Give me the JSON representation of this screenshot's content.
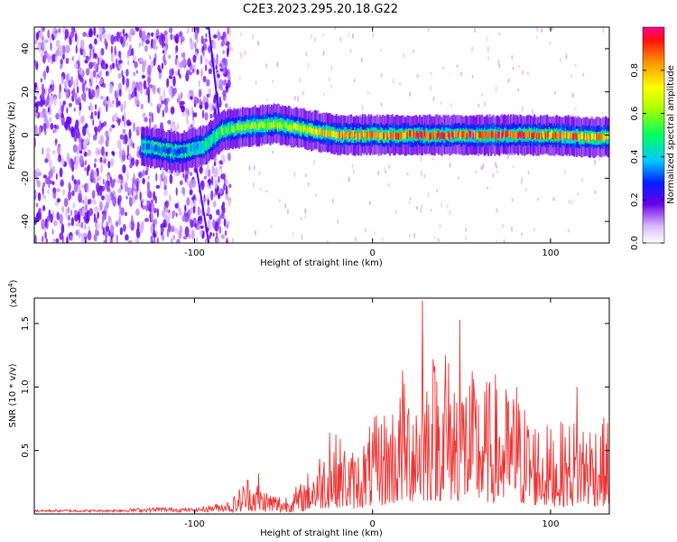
{
  "title": "C2E3.2023.295.20.18.G22",
  "chart_data": [
    {
      "type": "heatmap",
      "xlabel": "Height of straight line (km)",
      "ylabel": "Frequency (Hz)",
      "xlim": [
        -190,
        133
      ],
      "ylim": [
        -50,
        50
      ],
      "xticks": [
        -100,
        0,
        100
      ],
      "yticks": [
        -40,
        -20,
        0,
        20,
        40
      ],
      "colorbar": {
        "label": "Normalized spectral amplitude",
        "range": [
          0,
          1
        ],
        "ticks": [
          "0.0",
          "0.2",
          "0.4",
          "0.6",
          "0.8"
        ]
      },
      "ridge": {
        "note": "spectral energy concentrates near 0 Hz above about -85 km, noisy broadband below",
        "x": [
          -190,
          -150,
          -130,
          -110,
          -95,
          -85,
          -70,
          -55,
          -40,
          -20,
          0,
          20,
          40,
          60,
          80,
          100,
          120,
          133
        ],
        "frequency": [
          0,
          0,
          -5,
          -8,
          -5,
          2,
          4,
          5,
          3,
          0,
          0,
          0,
          0,
          0,
          0,
          0,
          -1,
          -1
        ],
        "amplitude": [
          0.3,
          0.3,
          0.35,
          0.3,
          0.4,
          0.55,
          0.6,
          0.6,
          0.65,
          0.8,
          0.85,
          0.85,
          0.9,
          0.9,
          0.9,
          0.85,
          0.8,
          0.8
        ]
      },
      "colors": {
        "low": "#e8d8ff",
        "mid": "#7a1fe0",
        "high": "#ff1e3c"
      }
    },
    {
      "type": "line",
      "xlabel": "Height of straight line (km)",
      "ylabel": "SNR (10 * v/v)",
      "y_scale_label": "(x10",
      "y_scale_exp": "4",
      "y_scale_close": ")",
      "xlim": [
        -190,
        133
      ],
      "ylim": [
        0,
        1.7
      ],
      "xticks": [
        -100,
        0,
        100
      ],
      "yticks": [
        "0.5",
        "1.0",
        "1.5"
      ],
      "envelope": {
        "x": [
          -190,
          -150,
          -120,
          -100,
          -80,
          -70,
          -60,
          -50,
          -40,
          -30,
          -20,
          -10,
          0,
          10,
          20,
          30,
          40,
          50,
          60,
          70,
          80,
          90,
          100,
          110,
          120,
          133
        ],
        "high": [
          0.03,
          0.03,
          0.05,
          0.04,
          0.1,
          0.32,
          0.2,
          0.15,
          0.25,
          0.5,
          0.65,
          0.5,
          0.75,
          0.9,
          1.1,
          1.25,
          1.3,
          1.2,
          1.1,
          1.05,
          1.0,
          0.8,
          0.7,
          0.75,
          0.8,
          0.75
        ]
      },
      "peaks": [
        {
          "x": 28,
          "y": 1.68
        },
        {
          "x": 49,
          "y": 1.53
        },
        {
          "x": 41,
          "y": 1.25
        },
        {
          "x": 34,
          "y": 1.22
        },
        {
          "x": 17,
          "y": 1.13
        },
        {
          "x": 69,
          "y": 1.1
        },
        {
          "x": 81,
          "y": 1.0
        },
        {
          "x": 115,
          "y": 1.0
        },
        {
          "x": -24,
          "y": 0.64
        },
        {
          "x": -64,
          "y": 0.32
        }
      ],
      "color": "#ee3333"
    }
  ]
}
